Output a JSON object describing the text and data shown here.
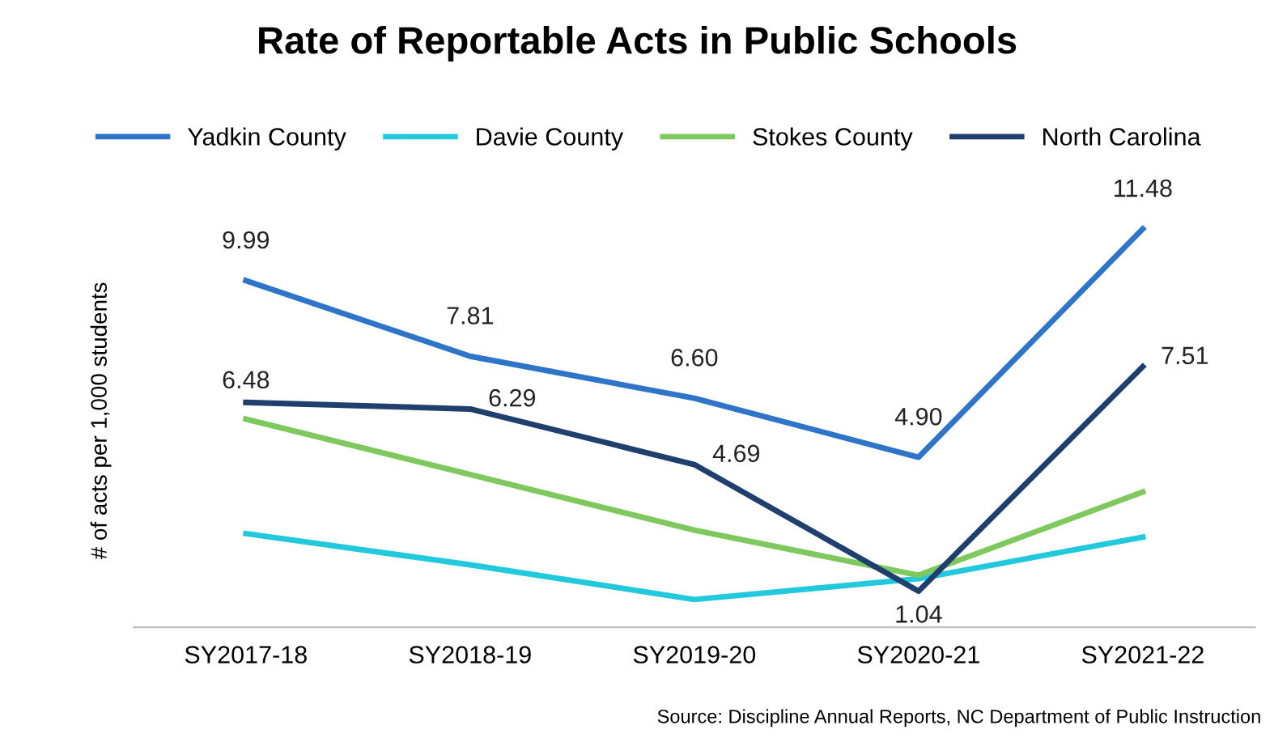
{
  "chart_data": {
    "type": "line",
    "title": "Rate of Reportable Acts in Public Schools",
    "ylabel": "# of acts per 1,000 students",
    "categories": [
      "SY2017-18",
      "SY2018-19",
      "SY2019-20",
      "SY2020-21",
      "SY2021-22"
    ],
    "series": [
      {
        "name": "Yadkin County",
        "color": "#2e75c9",
        "values": [
          9.99,
          7.81,
          6.6,
          4.9,
          11.48
        ],
        "value_labels": [
          "9.99",
          "7.81",
          "6.60",
          "4.90",
          "11.48"
        ]
      },
      {
        "name": "Davie County",
        "color": "#22c9dc",
        "values": [
          2.7,
          1.8,
          0.8,
          1.4,
          2.6
        ]
      },
      {
        "name": "Stokes County",
        "color": "#7dc95e",
        "values": [
          6.0,
          4.4,
          2.8,
          1.5,
          3.9
        ]
      },
      {
        "name": "North Carolina",
        "color": "#1f3f6e",
        "values": [
          6.48,
          6.29,
          4.69,
          1.04,
          7.51
        ],
        "value_labels": [
          "6.48",
          "6.29",
          "4.69",
          "1.04",
          "7.51"
        ]
      }
    ],
    "legend": "top",
    "grid": false,
    "marker": "none",
    "line_style": "solid",
    "annotations": [
      "Source: Discipline Annual Reports, NC Department of Public Instruction"
    ]
  }
}
